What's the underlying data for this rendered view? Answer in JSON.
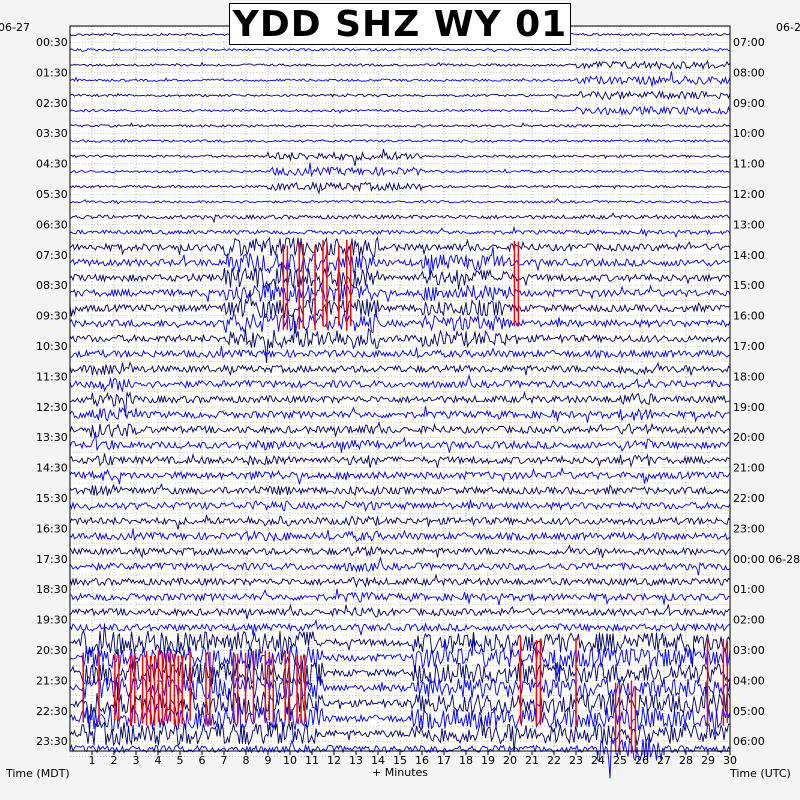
{
  "chart_data": {
    "type": "helicorder",
    "title": "YDD SHZ WY 01",
    "date_left": "06-27",
    "date_right": "06-2",
    "xlabel": "+ Minutes",
    "left_axis_label": "Time (MDT)",
    "right_axis_label": "Time (UTC)",
    "x_ticks": [
      "1",
      "2",
      "3",
      "4",
      "5",
      "6",
      "7",
      "8",
      "9",
      "10",
      "11",
      "12",
      "13",
      "14",
      "15",
      "16",
      "17",
      "18",
      "19",
      "20",
      "21",
      "22",
      "23",
      "24",
      "25",
      "26",
      "27",
      "28",
      "29",
      "30"
    ],
    "xlim": [
      0,
      30
    ],
    "rows_per_hour": 2,
    "num_rows": 48,
    "left_times": [
      "00:30",
      "01:30",
      "02:30",
      "03:30",
      "04:30",
      "05:30",
      "06:30",
      "07:30",
      "08:30",
      "09:30",
      "10:30",
      "11:30",
      "12:30",
      "13:30",
      "14:30",
      "15:30",
      "16:30",
      "17:30",
      "18:30",
      "19:30",
      "20:30",
      "21:30",
      "22:30",
      "23:30"
    ],
    "right_times": [
      "07:00",
      "08:00",
      "09:00",
      "10:00",
      "11:00",
      "12:00",
      "13:00",
      "14:00",
      "15:00",
      "16:00",
      "17:00",
      "18:00",
      "19:00",
      "20:00",
      "21:00",
      "22:00",
      "23:00",
      "00:00 06-28",
      "01:00",
      "02:00",
      "03:00",
      "04:00",
      "05:00",
      "06:00"
    ],
    "trace_colors": [
      "#000066",
      "#0000ff"
    ],
    "clip_color": "#ff0000",
    "clipped_segments": [
      {
        "start_row": 14,
        "end_row": 19,
        "from_min": 9.7,
        "to_min": 12.9
      },
      {
        "start_row": 14,
        "end_row": 19,
        "from_min": 20.2,
        "to_min": 20.6
      },
      {
        "start_row": 41,
        "end_row": 45,
        "from_min": 0.6,
        "to_min": 11.0
      },
      {
        "start_row": 40,
        "end_row": 45,
        "from_min": 20.3,
        "to_min": 23.0
      },
      {
        "start_row": 43,
        "end_row": 47,
        "from_min": 24.8,
        "to_min": 26.0
      },
      {
        "start_row": 40,
        "end_row": 45,
        "from_min": 28.8,
        "to_min": 30.0
      }
    ],
    "grid": true,
    "legend": "none"
  }
}
